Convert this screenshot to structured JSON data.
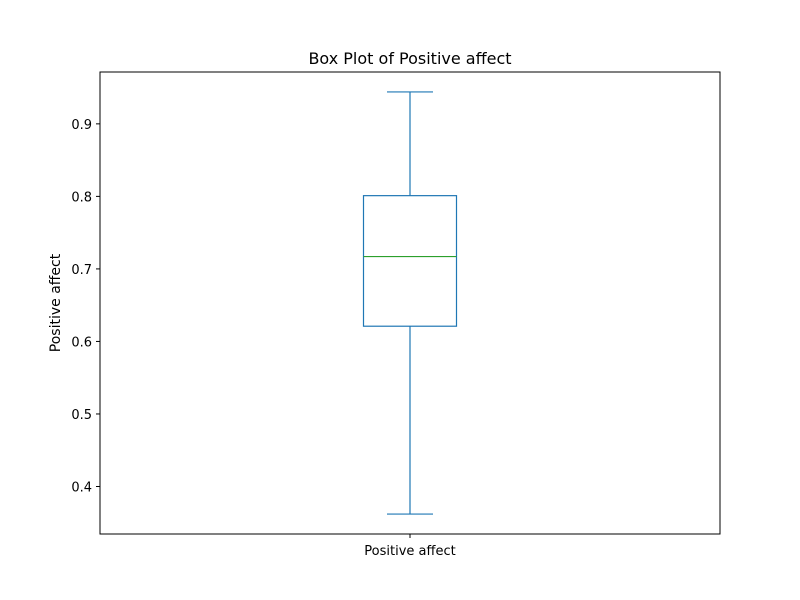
{
  "chart_data": {
    "type": "box",
    "title": "Box Plot of Positive affect",
    "xlabel": "",
    "ylabel": "Positive affect",
    "categories": [
      "Positive affect"
    ],
    "boxes": [
      {
        "category": "Positive affect",
        "whisker_low": 0.362,
        "q1": 0.621,
        "median": 0.717,
        "q3": 0.801,
        "whisker_high": 0.944
      }
    ],
    "ylim": [
      0.3345,
      0.9715
    ],
    "yticks": [
      0.4,
      0.5,
      0.6,
      0.7,
      0.8,
      0.9
    ],
    "ytick_labels": [
      "0.4",
      "0.5",
      "0.6",
      "0.7",
      "0.8",
      "0.9"
    ],
    "grid": false,
    "colors": {
      "box": "#1f77b4",
      "median": "#2ca02c",
      "axes": "#000000"
    }
  }
}
